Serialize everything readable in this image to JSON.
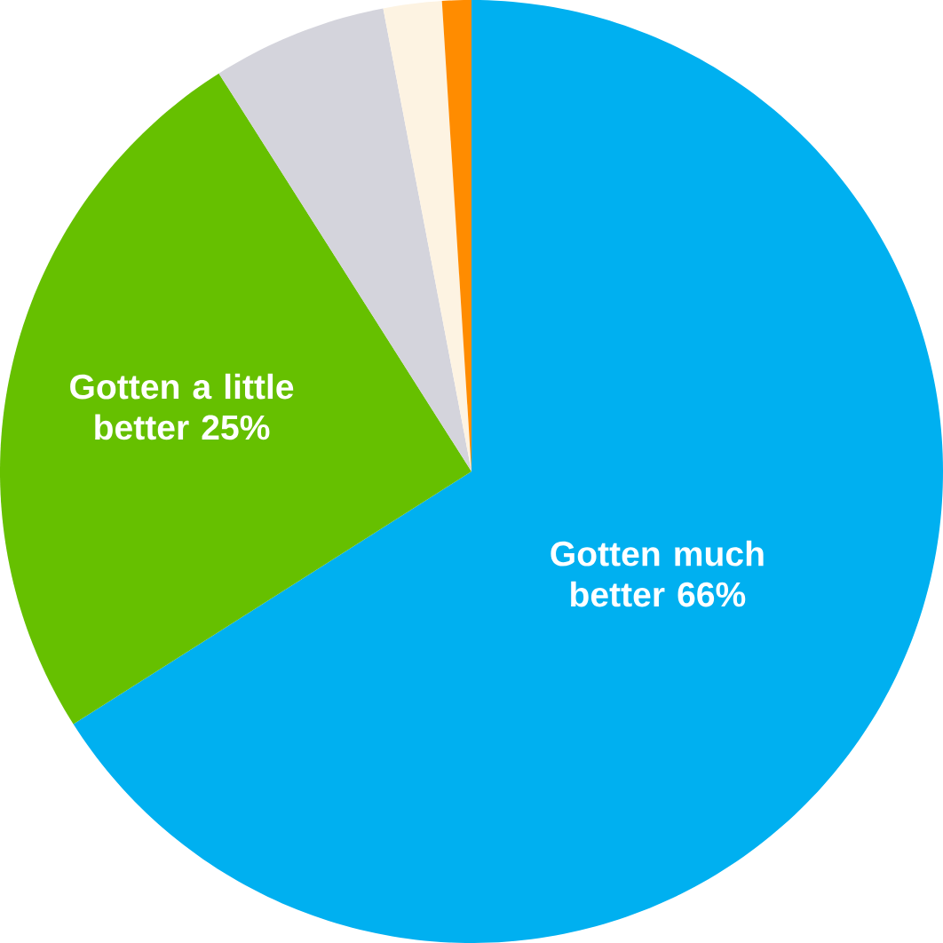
{
  "chart_data": {
    "type": "pie",
    "categories": [
      "Gotten much better",
      "Gotten a little better",
      null,
      null,
      null
    ],
    "values": [
      66,
      25,
      6,
      2,
      1
    ],
    "value_labels": [
      "66%",
      "25%",
      null,
      null,
      null
    ],
    "colors": [
      "#00b0f0",
      "#66c000",
      "#d4d4dc",
      "#fdf3e2",
      "#ff8c00"
    ]
  }
}
